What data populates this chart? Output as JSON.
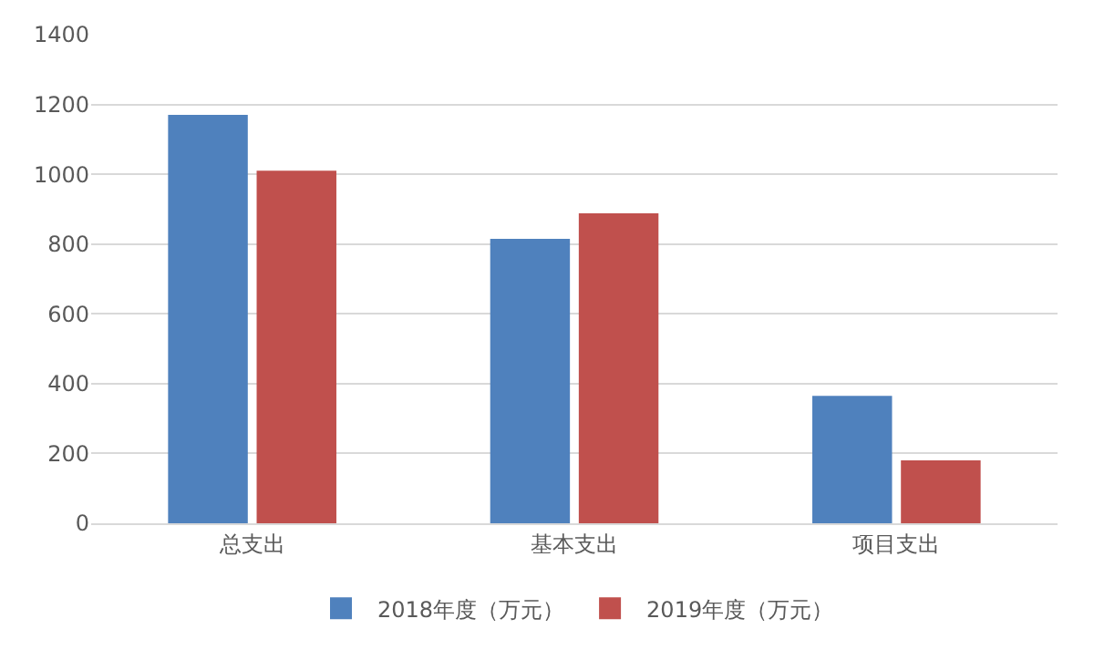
{
  "chart_data": {
    "type": "bar",
    "categories": [
      "总支出",
      "基本支出",
      "项目支出"
    ],
    "series": [
      {
        "name": "2018年度（万元）",
        "color": "#4f81bd",
        "values": [
          1170,
          815,
          365
        ]
      },
      {
        "name": "2019年度（万元）",
        "color": "#c0504d",
        "values": [
          1010,
          888,
          180
        ]
      }
    ],
    "ylim": [
      0,
      1400
    ],
    "yticks": [
      0,
      200,
      400,
      600,
      800,
      1000,
      1200,
      1400
    ],
    "grid": "y",
    "legend": "bottom"
  }
}
